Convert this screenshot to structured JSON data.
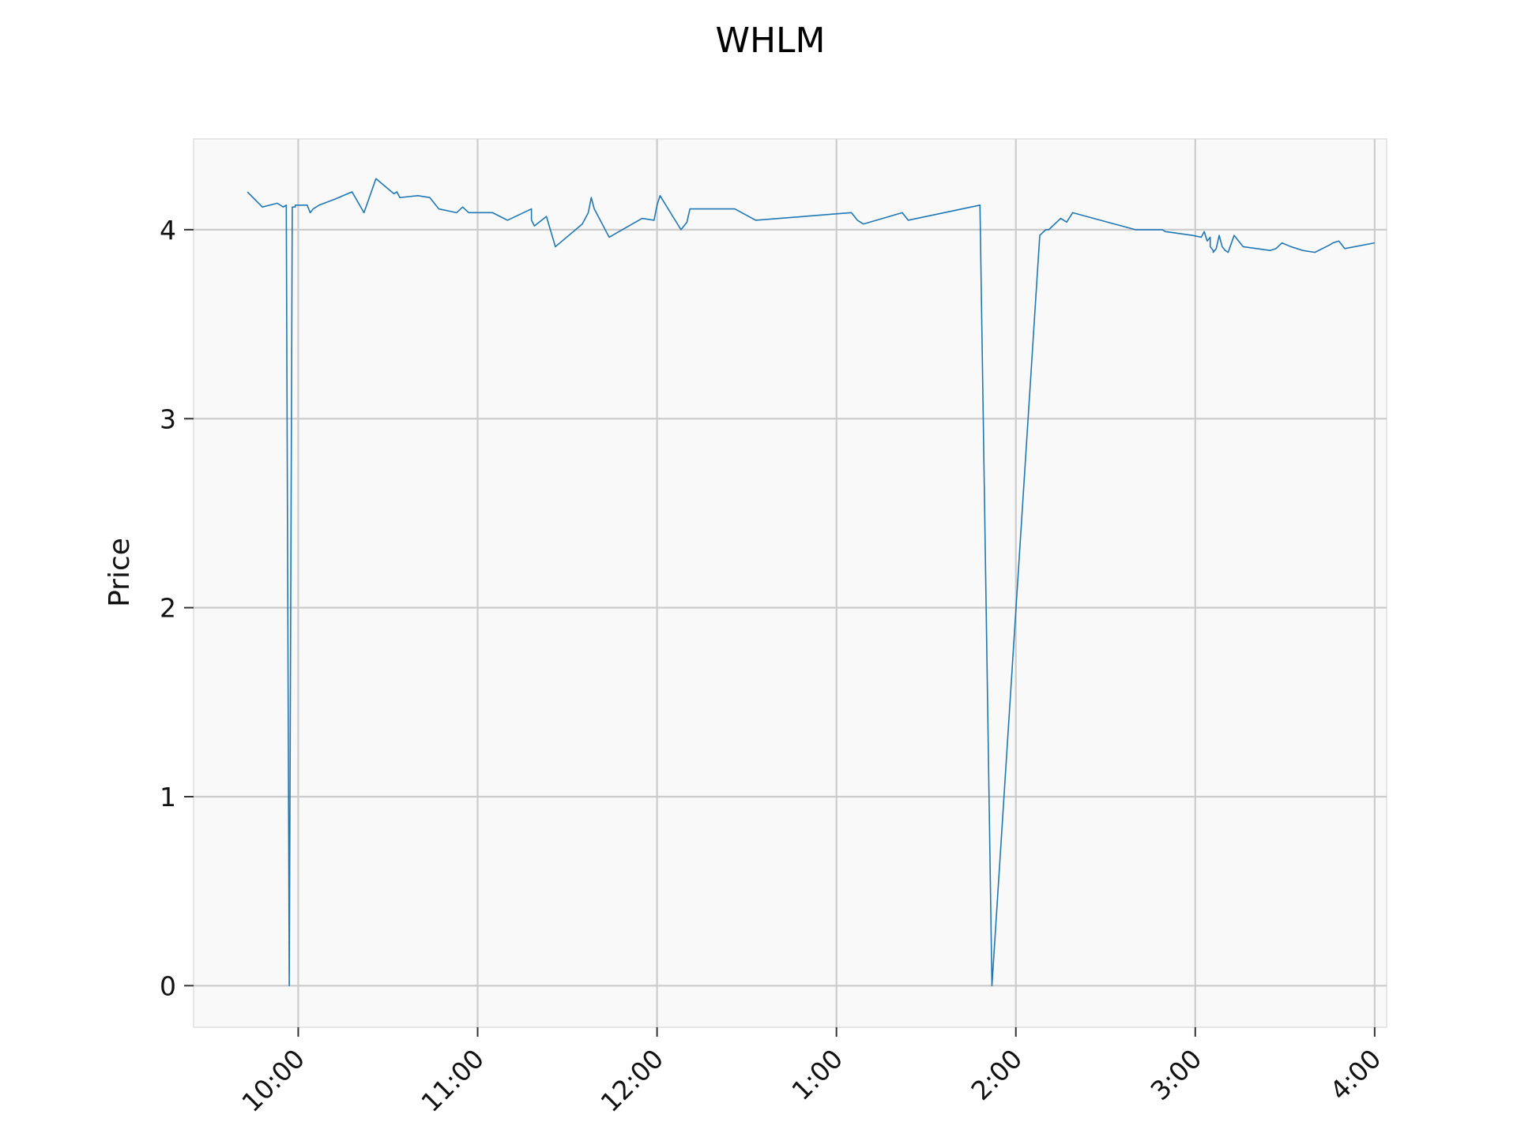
{
  "chart_data": {
    "type": "line",
    "title": "WHLM",
    "xlabel": "",
    "ylabel": "Price",
    "xlim": [
      "09:25",
      "16:04"
    ],
    "ylim": [
      -0.22,
      4.48
    ],
    "x_ticks": [
      "10:00",
      "11:00",
      "12:00",
      "1:00",
      "2:00",
      "3:00",
      "4:00"
    ],
    "y_ticks": [
      "0",
      "1",
      "2",
      "3",
      "4"
    ],
    "grid": true,
    "colors": {
      "line": "#1f77b4",
      "plot_background": "#f9f9f9",
      "grid": "#cccccc",
      "frame": "#e6e6e6"
    },
    "series": [
      {
        "x": [
          "09:43",
          "09:48",
          "09:53",
          "09:55",
          "09:56",
          "09:57",
          "09:58",
          "09:59",
          "09:59",
          "09:59",
          "10:00",
          "10:01",
          "10:03",
          "10:04",
          "10:05",
          "10:07",
          "10:12",
          "10:18",
          "10:22",
          "10:26",
          "10:32",
          "10:33",
          "10:34",
          "10:40",
          "10:44",
          "10:47",
          "10:53",
          "10:55",
          "10:57",
          "11:00",
          "11:05",
          "11:10",
          "11:18",
          "11:18",
          "11:19",
          "11:23",
          "11:26",
          "11:35",
          "11:37",
          "11:38",
          "11:39",
          "11:41",
          "11:44",
          "11:55",
          "11:59",
          "12:00",
          "12:01",
          "12:08",
          "12:10",
          "12:11",
          "12:26",
          "12:33",
          "13:05",
          "13:07",
          "13:09",
          "13:22",
          "13:24",
          "13:48",
          "13:52",
          "14:08",
          "14:10",
          "14:11",
          "14:15",
          "14:17",
          "14:19",
          "14:40",
          "14:49",
          "14:50",
          "14:59",
          "15:02",
          "15:03",
          "15:04",
          "15:05",
          "15:05",
          "15:06",
          "15:06",
          "15:07",
          "15:08",
          "15:09",
          "15:10",
          "15:11",
          "15:13",
          "15:14",
          "15:15",
          "15:16",
          "15:25",
          "15:27",
          "15:29",
          "15:32",
          "15:36",
          "15:40",
          "15:45",
          "15:46",
          "15:48",
          "15:49",
          "15:50",
          "16:00"
        ],
        "y": [
          4.2,
          4.12,
          4.14,
          4.12,
          4.13,
          0,
          4.12,
          4.12,
          4.12,
          4.13,
          4.13,
          4.13,
          4.13,
          4.09,
          4.11,
          4.13,
          4.16,
          4.2,
          4.09,
          4.27,
          4.19,
          4.2,
          4.17,
          4.18,
          4.17,
          4.11,
          4.09,
          4.12,
          4.09,
          4.09,
          4.09,
          4.05,
          4.11,
          4.05,
          4.02,
          4.07,
          3.91,
          4.03,
          4.09,
          4.17,
          4.11,
          4.05,
          3.96,
          4.06,
          4.05,
          4.13,
          4.18,
          4.0,
          4.04,
          4.11,
          4.11,
          4.05,
          4.09,
          4.05,
          4.03,
          4.09,
          4.05,
          4.13,
          0,
          3.97,
          4.0,
          4.0,
          4.06,
          4.04,
          4.09,
          4.0,
          4.0,
          3.99,
          3.97,
          3.96,
          3.99,
          3.94,
          3.96,
          3.91,
          3.89,
          3.88,
          3.9,
          3.97,
          3.91,
          3.89,
          3.88,
          3.97,
          3.95,
          3.93,
          3.91,
          3.89,
          3.9,
          3.93,
          3.91,
          3.89,
          3.88,
          3.92,
          3.93,
          3.94,
          3.92,
          3.9,
          3.93
        ]
      }
    ]
  }
}
